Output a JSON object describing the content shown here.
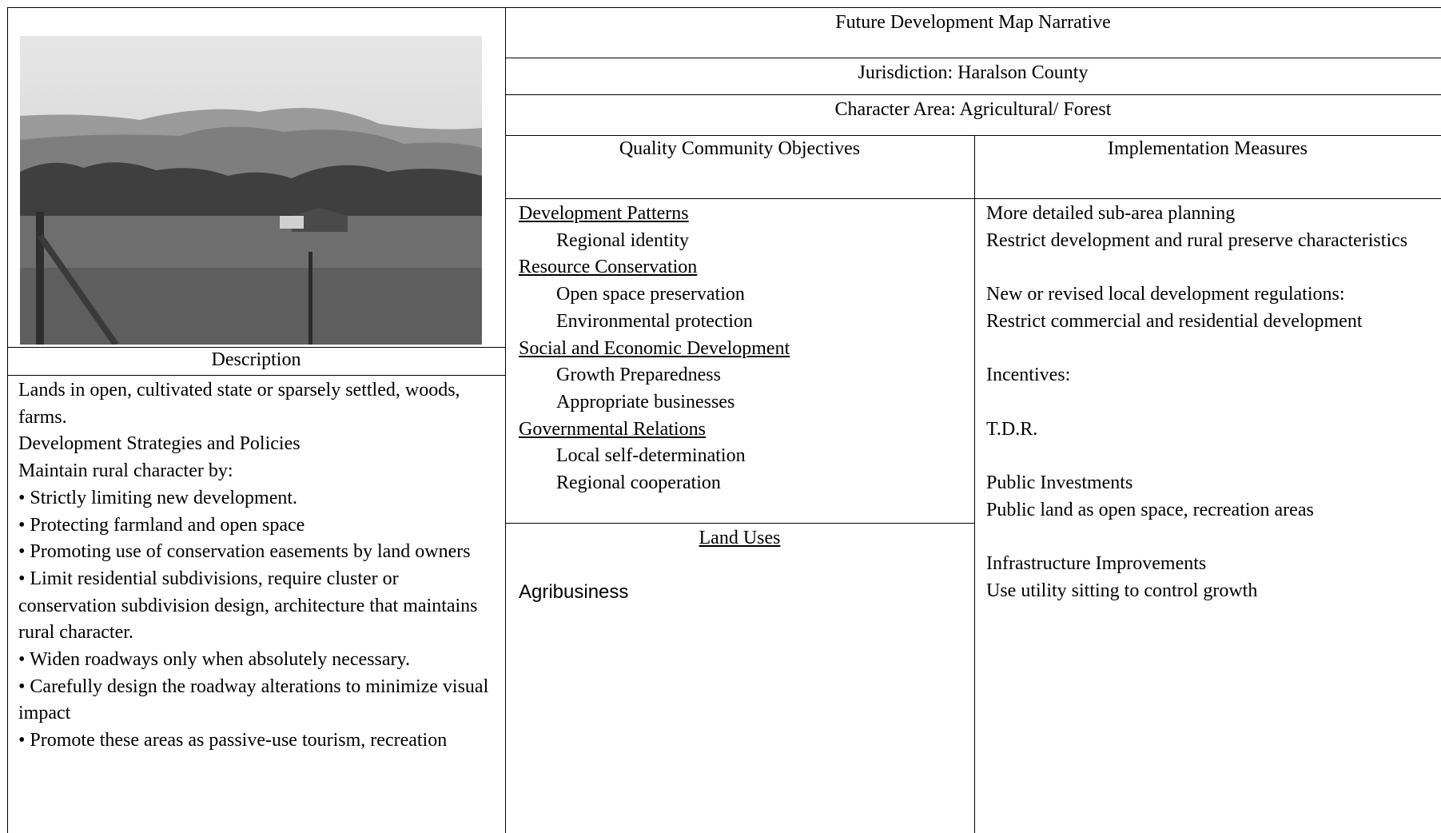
{
  "header": {
    "title": "Future Development Map Narrative",
    "jurisdiction": "Jurisdiction: Haralson County",
    "character_area": "Character Area: Agricultural/ Forest"
  },
  "description": {
    "label": "Description",
    "paragraphs": [
      "Lands in open, cultivated state or sparsely settled, woods, farms.",
      "Development Strategies and Policies",
      "Maintain rural character by:",
      "• Strictly limiting new development.",
      "• Protecting farmland and open space",
      "• Promoting use of conservation easements by land owners",
      "• Limit residential subdivisions, require cluster or conservation subdivision design, architecture that maintains rural character.",
      "• Widen roadways only when absolutely necessary.",
      "• Carefully design the roadway alterations to minimize visual impact",
      "• Promote these areas as passive-use tourism, recreation"
    ]
  },
  "objectives": {
    "header": "Quality Community Objectives",
    "groups": [
      {
        "heading": "Development Patterns",
        "items": [
          "Regional identity"
        ]
      },
      {
        "heading": "Resource Conservation",
        "items": [
          "Open space preservation",
          "Environmental protection"
        ]
      },
      {
        "heading": "Social and Economic Development",
        "items": [
          "Growth Preparedness",
          "Appropriate businesses"
        ]
      },
      {
        "heading": "Governmental Relations",
        "items": [
          "Local self-determination",
          "Regional cooperation"
        ]
      }
    ]
  },
  "land_uses": {
    "header": "Land Uses",
    "items": [
      "Agribusiness"
    ]
  },
  "implementation": {
    "header": "Implementation Measures",
    "sections": [
      [
        "More detailed sub-area planning",
        "Restrict development and rural preserve characteristics"
      ],
      [
        "New or revised local development regulations:",
        "Restrict commercial and residential development"
      ],
      [
        "Incentives:"
      ],
      [
        "T.D.R."
      ],
      [
        "Public Investments",
        "Public land as open space, recreation areas"
      ],
      [
        "Infrastructure Improvements",
        "Use utility sitting to control growth"
      ]
    ]
  }
}
